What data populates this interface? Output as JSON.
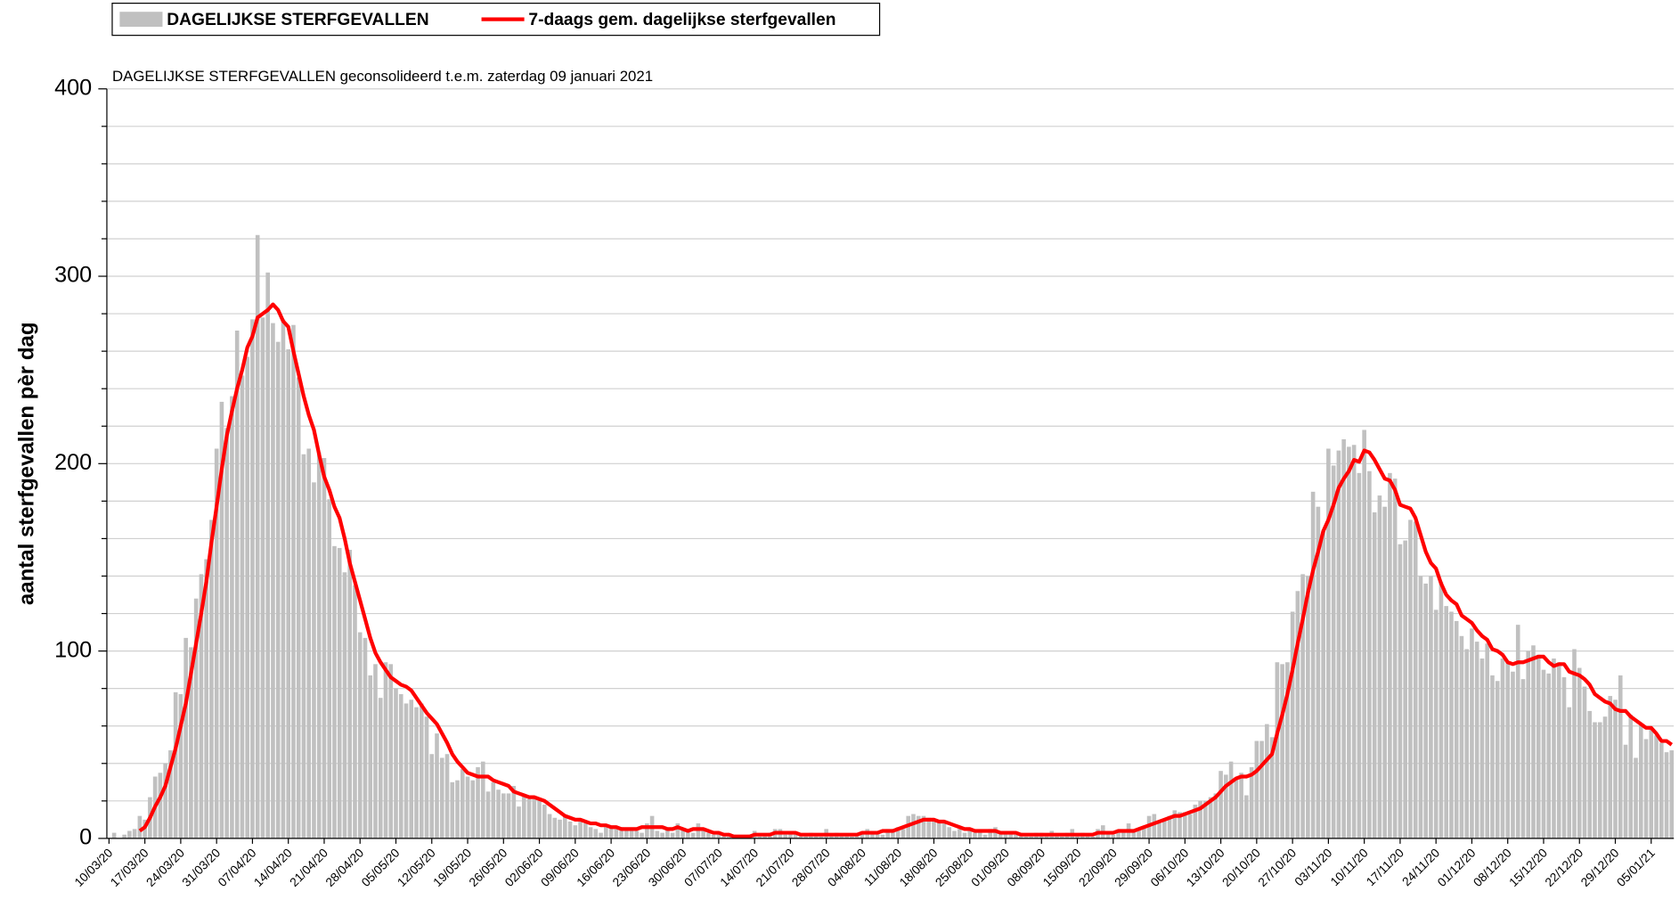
{
  "chart_data": {
    "type": "bar",
    "subtitle": "DAGELIJKSE STERFGEVALLEN geconsolideerd t.e.m. zaterdag 09 januari 2021",
    "y_label": "aantal sterfgevallen pèr dag",
    "ylim": [
      0,
      400
    ],
    "yticks": [
      0,
      100,
      200,
      300,
      400
    ],
    "minor_yticks": [
      20,
      40,
      60,
      80,
      120,
      140,
      160,
      180,
      220,
      240,
      260,
      280,
      320,
      340,
      360,
      380
    ],
    "grid": true,
    "legend": "top-left",
    "categories": [
      "10/03/20",
      null,
      null,
      null,
      null,
      null,
      null,
      "17/03/20",
      null,
      null,
      null,
      null,
      null,
      null,
      "24/03/20",
      null,
      null,
      null,
      null,
      null,
      null,
      "31/03/20",
      null,
      null,
      null,
      null,
      null,
      null,
      "07/04/20",
      null,
      null,
      null,
      null,
      null,
      null,
      "14/04/20",
      null,
      null,
      null,
      null,
      null,
      null,
      "21/04/20",
      null,
      null,
      null,
      null,
      null,
      null,
      "28/04/20",
      null,
      null,
      null,
      null,
      null,
      null,
      "05/05/20",
      null,
      null,
      null,
      null,
      null,
      null,
      "12/05/20",
      null,
      null,
      null,
      null,
      null,
      null,
      "19/05/20",
      null,
      null,
      null,
      null,
      null,
      null,
      "26/05/20",
      null,
      null,
      null,
      null,
      null,
      null,
      "02/06/20",
      null,
      null,
      null,
      null,
      null,
      null,
      "09/06/20",
      null,
      null,
      null,
      null,
      null,
      null,
      "16/06/20",
      null,
      null,
      null,
      null,
      null,
      null,
      "23/06/20",
      null,
      null,
      null,
      null,
      null,
      null,
      "30/06/20",
      null,
      null,
      null,
      null,
      null,
      null,
      "07/07/20",
      null,
      null,
      null,
      null,
      null,
      null,
      "14/07/20",
      null,
      null,
      null,
      null,
      null,
      null,
      "21/07/20",
      null,
      null,
      null,
      null,
      null,
      null,
      "28/07/20",
      null,
      null,
      null,
      null,
      null,
      null,
      "04/08/20",
      null,
      null,
      null,
      null,
      null,
      null,
      "11/08/20",
      null,
      null,
      null,
      null,
      null,
      null,
      "18/08/20",
      null,
      null,
      null,
      null,
      null,
      null,
      "25/08/20",
      null,
      null,
      null,
      null,
      null,
      null,
      "01/09/20",
      null,
      null,
      null,
      null,
      null,
      null,
      "08/09/20",
      null,
      null,
      null,
      null,
      null,
      null,
      "15/09/20",
      null,
      null,
      null,
      null,
      null,
      null,
      "22/09/20",
      null,
      null,
      null,
      null,
      null,
      null,
      "29/09/20",
      null,
      null,
      null,
      null,
      null,
      null,
      "06/10/20",
      null,
      null,
      null,
      null,
      null,
      null,
      "13/10/20",
      null,
      null,
      null,
      null,
      null,
      null,
      "20/10/20",
      null,
      null,
      null,
      null,
      null,
      null,
      "27/10/20",
      null,
      null,
      null,
      null,
      null,
      null,
      "03/11/20",
      null,
      null,
      null,
      null,
      null,
      null,
      "10/11/20",
      null,
      null,
      null,
      null,
      null,
      null,
      "17/11/20",
      null,
      null,
      null,
      null,
      null,
      null,
      "24/11/20",
      null,
      null,
      null,
      null,
      null,
      null,
      "01/12/20",
      null,
      null,
      null,
      null,
      null,
      null,
      "08/12/20",
      null,
      null,
      null,
      null,
      null,
      null,
      "15/12/20",
      null,
      null,
      null,
      null,
      null,
      null,
      "22/12/20",
      null,
      null,
      null,
      null,
      null,
      null,
      "29/12/20",
      null,
      null,
      null,
      null,
      null,
      null,
      "05/01/21",
      null,
      null,
      null,
      null
    ],
    "series": [
      {
        "name": "DAGELIJKSE STERFGEVALLEN",
        "type": "bar",
        "color": "#c0c0c0",
        "values": [
          0,
          3,
          0,
          2,
          4,
          5,
          12,
          10,
          22,
          33,
          35,
          40,
          47,
          78,
          77,
          107,
          102,
          128,
          141,
          149,
          170,
          208,
          233,
          219,
          236,
          271,
          247,
          257,
          277,
          322,
          278,
          302,
          275,
          265,
          277,
          261,
          274,
          246,
          205,
          208,
          190,
          206,
          203,
          181,
          156,
          155,
          142,
          154,
          135,
          110,
          107,
          87,
          93,
          75,
          94,
          93,
          80,
          77,
          72,
          74,
          70,
          72,
          65,
          45,
          56,
          43,
          45,
          30,
          31,
          37,
          33,
          31,
          38,
          41,
          25,
          30,
          26,
          24,
          24,
          28,
          17,
          23,
          21,
          21,
          21,
          18,
          13,
          11,
          10,
          12,
          9,
          7,
          9,
          8,
          6,
          5,
          3,
          7,
          6,
          5,
          6,
          4,
          5,
          4,
          3,
          8,
          12,
          4,
          3,
          5,
          3,
          8,
          5,
          4,
          3,
          8,
          4,
          3,
          2,
          3,
          2,
          1,
          2,
          1,
          1,
          2,
          4,
          1,
          2,
          3,
          5,
          5,
          2,
          3,
          3,
          2,
          2,
          3,
          2,
          1,
          5,
          2,
          3,
          2,
          2,
          1,
          2,
          3,
          5,
          3,
          4,
          2,
          5,
          5,
          6,
          5,
          12,
          13,
          12,
          12,
          11,
          9,
          9,
          8,
          6,
          4,
          5,
          3,
          4,
          3,
          4,
          2,
          5,
          6,
          3,
          4,
          3,
          2,
          3,
          1,
          1,
          3,
          3,
          2,
          4,
          2,
          1,
          3,
          5,
          2,
          3,
          2,
          1,
          5,
          7,
          3,
          2,
          3,
          4,
          8,
          4,
          5,
          6,
          12,
          13,
          8,
          10,
          12,
          15,
          14,
          14,
          13,
          18,
          20,
          20,
          22,
          24,
          36,
          34,
          41,
          32,
          35,
          23,
          38,
          52,
          52,
          61,
          54,
          94,
          93,
          94,
          121,
          132,
          141,
          140,
          185,
          177,
          164,
          208,
          199,
          207,
          213,
          209,
          210,
          195,
          218,
          196,
          174,
          183,
          177,
          195,
          192,
          157,
          159,
          170,
          169,
          140,
          136,
          140,
          122,
          137,
          124,
          121,
          116,
          108,
          101,
          112,
          105,
          96,
          104,
          87,
          84,
          96,
          94,
          89,
          114,
          85,
          100,
          103,
          98,
          90,
          88,
          96,
          94,
          86,
          70,
          101,
          91,
          81,
          68,
          62,
          62,
          65,
          76,
          74,
          87,
          50,
          66,
          43,
          61,
          53,
          59,
          55,
          51,
          46,
          47
        ]
      },
      {
        "name": "7-daags gem. dagelijkse sterfgevallen",
        "type": "line",
        "color": "#ff0000",
        "values": [
          null,
          null,
          null,
          null,
          null,
          null,
          4,
          6,
          11,
          17,
          22,
          28,
          38,
          48,
          60,
          72,
          88,
          104,
          120,
          137,
          158,
          177,
          197,
          215,
          228,
          240,
          250,
          262,
          268,
          278,
          280,
          282,
          285,
          282,
          276,
          273,
          260,
          248,
          236,
          226,
          218,
          205,
          193,
          186,
          177,
          171,
          160,
          147,
          137,
          127,
          117,
          107,
          99,
          94,
          90,
          86,
          84,
          82,
          81,
          79,
          75,
          71,
          67,
          64,
          61,
          56,
          51,
          45,
          41,
          38,
          35,
          34,
          33,
          33,
          33,
          31,
          30,
          29,
          28,
          25,
          24,
          23,
          22,
          22,
          21,
          20,
          18,
          16,
          14,
          12,
          11,
          10,
          10,
          9,
          8,
          8,
          7,
          7,
          6,
          6,
          5,
          5,
          5,
          5,
          6,
          6,
          6,
          6,
          6,
          5,
          5,
          6,
          5,
          4,
          5,
          5,
          5,
          4,
          3,
          3,
          2,
          2,
          1,
          1,
          1,
          1,
          2,
          2,
          2,
          2,
          3,
          3,
          3,
          3,
          3,
          2,
          2,
          2,
          2,
          2,
          2,
          2,
          2,
          2,
          2,
          2,
          2,
          3,
          3,
          3,
          3,
          4,
          4,
          4,
          5,
          6,
          7,
          8,
          9,
          10,
          10,
          10,
          9,
          9,
          8,
          7,
          6,
          5,
          5,
          4,
          4,
          4,
          4,
          4,
          3,
          3,
          3,
          3,
          2,
          2,
          2,
          2,
          2,
          2,
          2,
          2,
          2,
          2,
          2,
          2,
          2,
          2,
          2,
          3,
          3,
          3,
          3,
          4,
          4,
          4,
          4,
          5,
          6,
          7,
          8,
          9,
          10,
          11,
          12,
          12,
          13,
          14,
          15,
          16,
          18,
          20,
          22,
          25,
          28,
          30,
          32,
          33,
          33,
          34,
          36,
          39,
          42,
          45,
          56,
          66,
          77,
          90,
          104,
          117,
          131,
          143,
          153,
          164,
          170,
          178,
          187,
          192,
          196,
          202,
          201,
          207,
          206,
          202,
          197,
          192,
          191,
          186,
          178,
          177,
          176,
          171,
          162,
          153,
          147,
          144,
          136,
          130,
          127,
          125,
          119,
          117,
          115,
          111,
          108,
          106,
          101,
          100,
          98,
          94,
          93,
          94,
          94,
          95,
          96,
          97,
          97,
          94,
          92,
          93,
          93,
          89,
          88,
          87,
          85,
          82,
          77,
          75,
          73,
          72,
          69,
          68,
          68,
          65,
          63,
          61,
          59,
          59,
          56,
          52,
          52,
          50
        ]
      }
    ]
  }
}
